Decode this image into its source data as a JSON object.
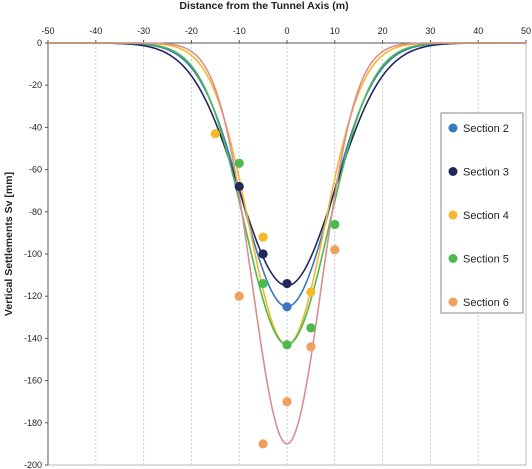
{
  "chart_data": {
    "type": "scatter",
    "title": "Distance from the Tunnel Axis (m)",
    "xlabel": "Distance from the Tunnel Axis (m)",
    "ylabel": "Vertical Settlements Sv [mm]",
    "xlim": [
      -50,
      50
    ],
    "ylim": [
      -200,
      0
    ],
    "x_ticks": [
      "-50",
      "-40",
      "-30",
      "-20",
      "-10",
      "0",
      "10",
      "20",
      "30",
      "40",
      "50"
    ],
    "y_ticks": [
      "0",
      "-20",
      "-40",
      "-60",
      "-80",
      "-100",
      "-120",
      "-140",
      "-160",
      "-180",
      "-200"
    ],
    "x_axis_position": "top",
    "grid": "vertical dashed",
    "legend_position": "right",
    "series": [
      {
        "name": "Section 2",
        "color": "#3a78c2",
        "curve": {
          "smax": -125,
          "i": 9.2
        },
        "points": [
          {
            "x": 0,
            "y": -125
          }
        ]
      },
      {
        "name": "Section 3",
        "color": "#23285c",
        "curve": {
          "smax": -115,
          "i": 10.0
        },
        "points": [
          {
            "x": -10,
            "y": -68
          },
          {
            "x": -5,
            "y": -100
          },
          {
            "x": 0,
            "y": -114
          }
        ]
      },
      {
        "name": "Section 4",
        "color": "#f5b82a",
        "curve": {
          "smax": -143,
          "i": 7.9
        },
        "points": [
          {
            "x": -15,
            "y": -43
          },
          {
            "x": -5,
            "y": -92
          },
          {
            "x": 5,
            "y": -118
          },
          {
            "x": 0,
            "y": -143
          }
        ]
      },
      {
        "name": "Section 5",
        "color": "#4cba4f",
        "curve": {
          "smax": -143,
          "i": 8.8
        },
        "points": [
          {
            "x": -10,
            "y": -57
          },
          {
            "x": -5,
            "y": -114
          },
          {
            "x": 0,
            "y": -143
          },
          {
            "x": 5,
            "y": -135
          },
          {
            "x": 10,
            "y": -86
          }
        ]
      },
      {
        "name": "Section 6",
        "color": "#f0a05a",
        "curve": {
          "smax": -190,
          "i": 7.2,
          "color": "#d98f8f"
        },
        "points": [
          {
            "x": -10,
            "y": -120
          },
          {
            "x": -5,
            "y": -190
          },
          {
            "x": 0,
            "y": -170
          },
          {
            "x": 5,
            "y": -144
          },
          {
            "x": 10,
            "y": -98
          }
        ]
      }
    ]
  }
}
